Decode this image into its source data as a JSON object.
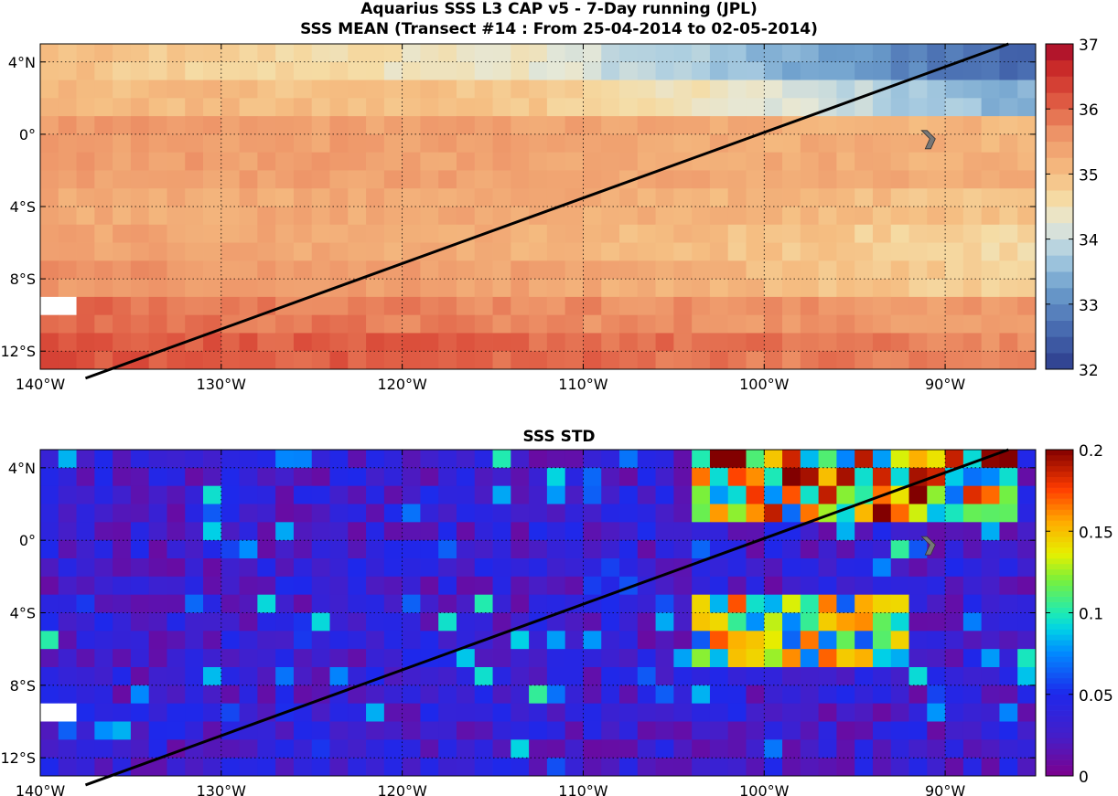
{
  "figure": {
    "title_line1": "Aquarius SSS L3 CAP v5 - 7-Day running (JPL)",
    "title_line2": "SSS MEAN (Transect #14 : From 25-04-2014 to 02-05-2014)",
    "title_bottom": "SSS STD"
  },
  "chart_data": [
    {
      "type": "heatmap",
      "title": "SSS MEAN (Transect #14 : From 25-04-2014 to 02-05-2014)",
      "variable": "sea surface salinity mean",
      "xlim": [
        -140,
        -85
      ],
      "ylim": [
        -13,
        5
      ],
      "xticks": [
        -140,
        -130,
        -120,
        -110,
        -100,
        -90
      ],
      "xtick_labels": [
        "140°W",
        "130°W",
        "120°W",
        "110°W",
        "100°W",
        "90°W"
      ],
      "yticks": [
        4,
        0,
        -4,
        -8,
        -12
      ],
      "ytick_labels": [
        "4°N",
        "0°",
        "4°S",
        "8°S",
        "12°S"
      ],
      "grid": true,
      "colorbar": {
        "min": 32,
        "max": 37,
        "ticks": [
          32,
          33,
          34,
          35,
          36,
          37
        ],
        "tick_labels": [
          "32",
          "33",
          "34",
          "35",
          "36",
          "37"
        ],
        "colormap": "red-yellow-blue"
      },
      "grid_values_by_lat": {
        "lat_band_4N": {
          "west": 35.0,
          "mid": 34.3,
          "east": 32.5
        },
        "lat_band_2N": {
          "west": 35.1,
          "mid": 34.9,
          "east": 33.4
        },
        "lat_band_0": {
          "west": 35.5,
          "mid": 35.4,
          "east": 35.1
        },
        "lat_band_2S": {
          "west": 35.5,
          "mid": 35.4,
          "east": 35.2
        },
        "lat_band_4S": {
          "west": 35.3,
          "mid": 35.3,
          "east": 34.9
        },
        "lat_band_6S": {
          "west": 35.4,
          "mid": 35.2,
          "east": 34.6
        },
        "lat_band_8S": {
          "west": 35.6,
          "mid": 35.4,
          "east": 34.7
        },
        "lat_band_10S": {
          "west": 36.0,
          "mid": 35.7,
          "east": 35.5
        },
        "lat_band_12S": {
          "west": 36.2,
          "mid": 36.0,
          "east": 35.7
        }
      },
      "transect": {
        "name": "Transect #14",
        "start": [
          -137.5,
          -13.5
        ],
        "end": [
          -86.5,
          5.0
        ]
      },
      "missing_cells": [
        [
          -139,
          -9.5
        ],
        [
          -90.5,
          0
        ]
      ],
      "markers": [
        {
          "shape": "chevron",
          "lon": -91,
          "lat": -0.3,
          "color": "#777777"
        }
      ]
    },
    {
      "type": "heatmap",
      "title": "SSS STD",
      "variable": "sea surface salinity standard deviation",
      "xlim": [
        -140,
        -85
      ],
      "ylim": [
        -13,
        5
      ],
      "xticks": [
        -140,
        -130,
        -120,
        -110,
        -100,
        -90
      ],
      "xtick_labels": [
        "140°W",
        "130°W",
        "120°W",
        "110°W",
        "100°W",
        "90°W"
      ],
      "yticks": [
        4,
        0,
        -4,
        -8,
        -12
      ],
      "ytick_labels": [
        "4°N",
        "0°",
        "4°S",
        "8°S",
        "12°S"
      ],
      "grid": true,
      "colorbar": {
        "min": 0,
        "max": 0.2,
        "ticks": [
          0,
          0.05,
          0.1,
          0.15,
          0.2
        ],
        "tick_labels": [
          "0",
          "0.05",
          "0.1",
          "0.15",
          "0.2"
        ],
        "colormap": "jet"
      },
      "high_std_regions": [
        {
          "lon_range": [
            -104,
            -86
          ],
          "lat_range": [
            1,
            5
          ],
          "std": 0.19
        },
        {
          "lon_range": [
            -104,
            -92
          ],
          "lat_range": [
            -7,
            -3
          ],
          "std": 0.15
        }
      ],
      "typical_std": 0.03,
      "transect": {
        "name": "Transect #14",
        "start": [
          -137.5,
          -13.5
        ],
        "end": [
          -86.5,
          5.0
        ]
      },
      "missing_cells": [
        [
          -139,
          -9.5
        ],
        [
          -90.5,
          0
        ]
      ],
      "markers": [
        {
          "shape": "chevron",
          "lon": -91,
          "lat": -0.3,
          "color": "#777777"
        }
      ]
    }
  ]
}
